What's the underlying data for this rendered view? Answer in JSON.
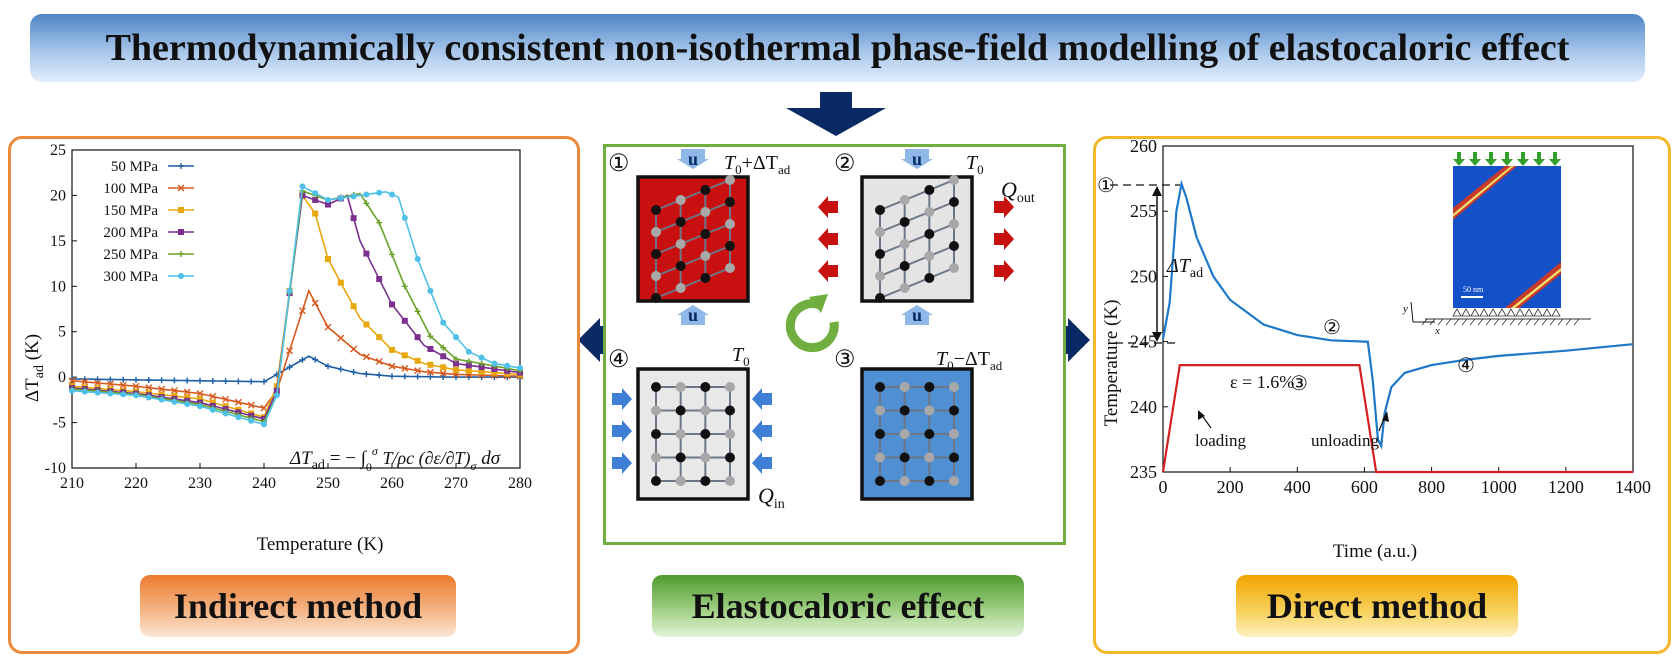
{
  "title": "Thermodynamically consistent non-isothermal phase-field modelling of elastocaloric effect",
  "labels": {
    "indirect": "Indirect method",
    "elastocaloric": "Elastocaloric effect",
    "direct": "Direct method"
  },
  "colors": {
    "navy_arrow": "#0a2a66",
    "orange_border": "#ec8a3b",
    "green_border": "#6fae3f",
    "yellow_border": "#f3b72b"
  },
  "indirect_chart": {
    "type": "line",
    "xlabel": "Temperature (K)",
    "ylabel": "ΔT_ad (K)",
    "xlim": [
      210,
      280
    ],
    "ylim": [
      -10,
      25
    ],
    "xticks": [
      "210",
      "220",
      "230",
      "240",
      "250",
      "260",
      "270",
      "280"
    ],
    "yticks": [
      "-10",
      "-5",
      "0",
      "5",
      "10",
      "15",
      "20",
      "25"
    ],
    "formula": "ΔT_ad = − ∫₀^σ (T/ρc) (∂ε/∂T)_σ dσ",
    "series": [
      {
        "name": "50 MPa",
        "color": "#1f5fa5",
        "marker": "plus",
        "points": [
          [
            210,
            -0.2
          ],
          [
            220,
            -0.3
          ],
          [
            230,
            -0.4
          ],
          [
            240,
            -0.5
          ],
          [
            242,
            0.3
          ],
          [
            247,
            2.3
          ],
          [
            250,
            1.2
          ],
          [
            255,
            0.4
          ],
          [
            260,
            0.1
          ],
          [
            270,
            0
          ],
          [
            280,
            0
          ]
        ]
      },
      {
        "name": "100 MPa",
        "color": "#d65a1e",
        "marker": "x",
        "points": [
          [
            210,
            -0.4
          ],
          [
            220,
            -1.0
          ],
          [
            230,
            -1.8
          ],
          [
            240,
            -3.4
          ],
          [
            242,
            -1.5
          ],
          [
            247,
            9.5
          ],
          [
            250,
            5.5
          ],
          [
            255,
            2.5
          ],
          [
            260,
            1.2
          ],
          [
            265,
            0.6
          ],
          [
            270,
            0.3
          ],
          [
            280,
            0.1
          ]
        ]
      },
      {
        "name": "150 MPa",
        "color": "#e8a80d",
        "marker": "square",
        "points": [
          [
            210,
            -1.0
          ],
          [
            220,
            -1.6
          ],
          [
            230,
            -2.4
          ],
          [
            240,
            -4.4
          ],
          [
            242,
            -1.0
          ],
          [
            246,
            20.0
          ],
          [
            248,
            18.0
          ],
          [
            250,
            13.0
          ],
          [
            255,
            6.5
          ],
          [
            260,
            3.0
          ],
          [
            265,
            1.5
          ],
          [
            270,
            0.8
          ],
          [
            280,
            0.3
          ]
        ]
      },
      {
        "name": "200 MPa",
        "color": "#7b2f8e",
        "marker": "square",
        "points": [
          [
            210,
            -1.2
          ],
          [
            220,
            -1.8
          ],
          [
            230,
            -2.8
          ],
          [
            240,
            -4.6
          ],
          [
            242,
            -1.5
          ],
          [
            246,
            20.0
          ],
          [
            250,
            19.0
          ],
          [
            253,
            20.0
          ],
          [
            255,
            15.0
          ],
          [
            260,
            8.0
          ],
          [
            265,
            3.5
          ],
          [
            270,
            1.5
          ],
          [
            280,
            0.5
          ]
        ]
      },
      {
        "name": "250 MPa",
        "color": "#6aa32a",
        "marker": "plus",
        "points": [
          [
            210,
            -1.3
          ],
          [
            220,
            -1.9
          ],
          [
            230,
            -3.0
          ],
          [
            240,
            -4.9
          ],
          [
            242,
            -2.0
          ],
          [
            246,
            20.5
          ],
          [
            250,
            19.5
          ],
          [
            255,
            20.2
          ],
          [
            258,
            17.0
          ],
          [
            262,
            10.0
          ],
          [
            266,
            4.5
          ],
          [
            270,
            2.0
          ],
          [
            280,
            0.7
          ]
        ]
      },
      {
        "name": "300 MPa",
        "color": "#4fc1e9",
        "marker": "circle",
        "points": [
          [
            210,
            -1.5
          ],
          [
            220,
            -2.0
          ],
          [
            230,
            -3.2
          ],
          [
            240,
            -5.2
          ],
          [
            242,
            -2.0
          ],
          [
            246,
            21.0
          ],
          [
            250,
            19.5
          ],
          [
            255,
            20.0
          ],
          [
            259,
            20.4
          ],
          [
            261,
            19.8
          ],
          [
            264,
            13.0
          ],
          [
            268,
            6.0
          ],
          [
            272,
            2.8
          ],
          [
            276,
            1.5
          ],
          [
            280,
            1.0
          ]
        ]
      }
    ]
  },
  "direct_chart": {
    "type": "line",
    "xlabel": "Time (a.u.)",
    "ylabel": "Temperature (K)",
    "xlim": [
      0,
      1400
    ],
    "ylim": [
      235,
      260
    ],
    "xticks": [
      "0",
      "200",
      "400",
      "600",
      "800",
      "1000",
      "1200",
      "1400"
    ],
    "yticks": [
      "235",
      "240",
      "245",
      "250",
      "255",
      "260"
    ],
    "delta_label": "ΔT_ad",
    "strain_label": "ε = 1.6%",
    "loading_label": "loading",
    "unloading_label": "unloading",
    "scale_label": "50 nm",
    "axis_x": "x",
    "axis_y": "y",
    "stage_markers": [
      "①",
      "②",
      "③",
      "④"
    ],
    "temperature_curve": [
      [
        0,
        245.2
      ],
      [
        20,
        248
      ],
      [
        40,
        255
      ],
      [
        55,
        257.1
      ],
      [
        70,
        256
      ],
      [
        100,
        253
      ],
      [
        150,
        250
      ],
      [
        200,
        248.2
      ],
      [
        300,
        246.3
      ],
      [
        400,
        245.5
      ],
      [
        500,
        245.1
      ],
      [
        600,
        245.0
      ],
      [
        610,
        245.0
      ],
      [
        625,
        242
      ],
      [
        640,
        237.5
      ],
      [
        650,
        237.0
      ],
      [
        660,
        239.5
      ],
      [
        680,
        241.5
      ],
      [
        720,
        242.6
      ],
      [
        800,
        243.2
      ],
      [
        900,
        243.6
      ],
      [
        1000,
        243.9
      ],
      [
        1200,
        244.3
      ],
      [
        1400,
        244.8
      ]
    ],
    "strain_curve": [
      [
        0,
        235
      ],
      [
        50,
        243.2
      ],
      [
        585,
        243.2
      ],
      [
        635,
        235
      ],
      [
        1400,
        235
      ]
    ]
  },
  "cycle": {
    "stage1": {
      "number": "①",
      "label": "T₀+ΔT_ad"
    },
    "stage2": {
      "number": "②",
      "label": "T₀",
      "heat": "Q_out"
    },
    "stage3": {
      "number": "③",
      "label": "T₀−ΔT_ad"
    },
    "stage4": {
      "number": "④",
      "label": "T₀",
      "heat": "Q_in"
    },
    "load_symbol": "u"
  }
}
